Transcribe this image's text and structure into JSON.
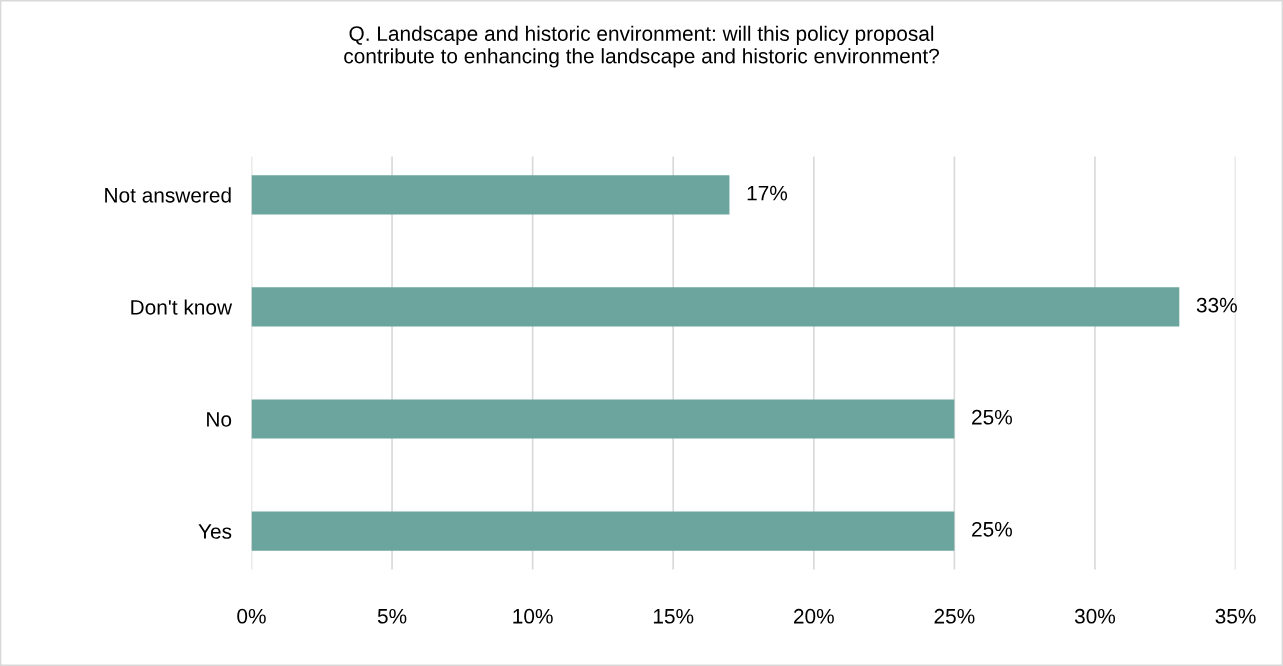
{
  "chart_data": {
    "type": "bar",
    "orientation": "horizontal",
    "title": "Q. Landscape and historic environment: will this policy proposal\ncontribute to enhancing the landscape and historic environment?",
    "categories": [
      "Not answered",
      "Don't know",
      "No",
      "Yes"
    ],
    "values": [
      17,
      33,
      25,
      25
    ],
    "value_labels": [
      "17%",
      "33%",
      "25%",
      "25%"
    ],
    "color": "#6ba59e",
    "xlim": [
      0,
      35
    ],
    "xticks": [
      {
        "value": 0,
        "label": "0%"
      },
      {
        "value": 5,
        "label": "5%"
      },
      {
        "value": 10,
        "label": "10%"
      },
      {
        "value": 15,
        "label": "15%"
      },
      {
        "value": 20,
        "label": "20%"
      },
      {
        "value": 25,
        "label": "25%"
      },
      {
        "value": 30,
        "label": "30%"
      },
      {
        "value": 35,
        "label": "35%"
      }
    ],
    "grid": "x"
  }
}
